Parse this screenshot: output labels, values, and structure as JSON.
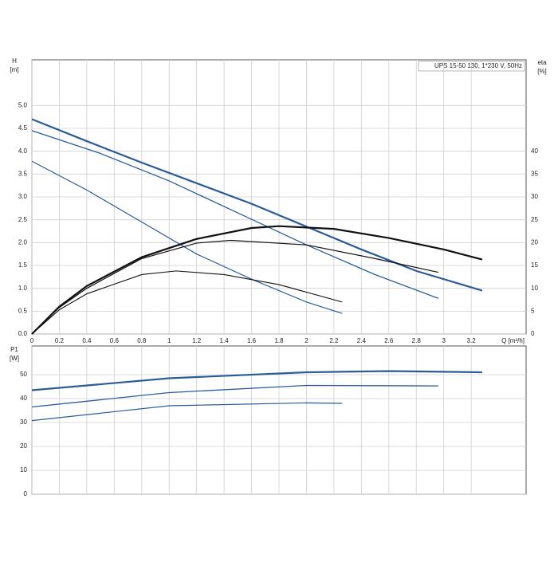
{
  "chart_data": [
    {
      "type": "line",
      "title": "UPS 15-50 130, 1*230 V, 50Hz",
      "ylabel": "H",
      "yunit": "[m]",
      "y2label": "eta",
      "y2unit": "[%]",
      "xlabel": "Q [m³/h]",
      "xlim": [
        0,
        3.6
      ],
      "xticks": [
        0,
        0.2,
        0.4,
        0.6,
        0.8,
        1.0,
        1.2,
        1.4,
        1.6,
        1.8,
        2.0,
        2.2,
        2.4,
        2.6,
        2.8,
        3.0,
        3.2
      ],
      "ylim": [
        0,
        6
      ],
      "yticks": [
        {
          "value": 0,
          "label": "0.0"
        },
        0.5,
        {
          "value": 1,
          "label": "1.0"
        },
        1.5,
        {
          "value": 2,
          "label": "2.0"
        },
        2.5,
        {
          "value": 3,
          "label": "3.0"
        },
        3.5,
        {
          "value": 4,
          "label": "4.0"
        },
        4.5,
        {
          "value": 5,
          "label": "5.0"
        }
      ],
      "y2lim": [
        0,
        60
      ],
      "y2ticks": [
        0,
        5,
        10,
        15,
        20,
        25,
        30,
        35,
        40
      ],
      "grid": true,
      "series": [
        {
          "color": "#2b5c97",
          "width": 2.2,
          "x": [
            0,
            0.4,
            0.8,
            1.2,
            1.6,
            2.0,
            2.4,
            2.8,
            3.28
          ],
          "values": [
            4.7,
            4.22,
            3.75,
            3.3,
            2.85,
            2.35,
            1.85,
            1.38,
            0.95
          ]
        },
        {
          "color": "#2b5c97",
          "width": 1.3,
          "x": [
            0,
            0.5,
            1.0,
            1.5,
            2.0,
            2.5,
            2.96
          ],
          "values": [
            4.45,
            3.95,
            3.35,
            2.65,
            1.95,
            1.3,
            0.78
          ]
        },
        {
          "color": "#2b5c97",
          "width": 1.2,
          "x": [
            0,
            0.4,
            0.8,
            1.2,
            1.6,
            2.0,
            2.26
          ],
          "values": [
            3.78,
            3.15,
            2.45,
            1.75,
            1.2,
            0.7,
            0.45
          ]
        },
        {
          "color": "#111111",
          "width": 2.2,
          "axis": "y2",
          "x": [
            0,
            0.2,
            0.4,
            0.8,
            1.2,
            1.6,
            1.8,
            2.2,
            2.6,
            3.0,
            3.28
          ],
          "values": [
            0,
            6,
            10.5,
            16.8,
            20.8,
            23.2,
            23.6,
            23,
            21,
            18.5,
            16.3
          ]
        },
        {
          "color": "#111111",
          "width": 1.2,
          "axis": "y2",
          "x": [
            0,
            0.2,
            0.4,
            0.8,
            1.2,
            1.45,
            2.0,
            2.5,
            2.96
          ],
          "values": [
            0,
            5.8,
            10,
            16.5,
            19.9,
            20.5,
            19.5,
            16.5,
            13.5
          ]
        },
        {
          "color": "#111111",
          "width": 1.1,
          "axis": "y2",
          "x": [
            0,
            0.2,
            0.4,
            0.8,
            1.05,
            1.4,
            1.8,
            2.26
          ],
          "values": [
            0,
            5.3,
            8.8,
            13,
            13.8,
            13,
            10.8,
            7
          ]
        }
      ]
    },
    {
      "type": "line",
      "ylabel": "P1",
      "yunit": "[W]",
      "xlim": [
        0,
        3.6
      ],
      "ylim": [
        0,
        62
      ],
      "yticks": [
        0,
        10,
        20,
        30,
        40,
        50
      ],
      "grid": true,
      "series": [
        {
          "color": "#2b5c97",
          "width": 2.2,
          "x": [
            0,
            1,
            2,
            2.6,
            3.28
          ],
          "values": [
            43.5,
            48.5,
            51,
            51.5,
            51
          ]
        },
        {
          "color": "#2b5c97",
          "width": 1.3,
          "x": [
            0,
            1,
            2,
            2.96
          ],
          "values": [
            36.5,
            42.5,
            45.5,
            45.3
          ]
        },
        {
          "color": "#2b5c97",
          "width": 1.2,
          "x": [
            0,
            1,
            2,
            2.26
          ],
          "values": [
            30.8,
            37,
            38.2,
            38
          ]
        }
      ]
    }
  ]
}
